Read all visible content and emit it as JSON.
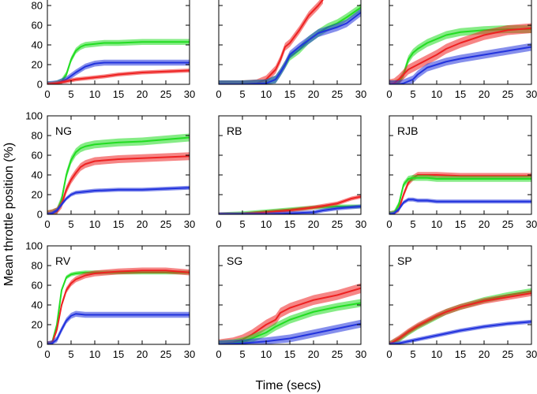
{
  "chart_data": {
    "type": "line",
    "ylabel": "Mean throttle position (%)",
    "xlabel": "Time (secs)",
    "xlim": [
      0,
      30
    ],
    "ylim": [
      0,
      100
    ],
    "xticks": [
      0,
      5,
      10,
      15,
      20,
      25,
      30
    ],
    "yticks": [
      0,
      20,
      40,
      60,
      80,
      100
    ],
    "colors": {
      "green": "#22dd22",
      "red": "#ee2222",
      "blue": "#2233dd"
    },
    "panels": [
      {
        "label": "",
        "series": [
          {
            "color": "green",
            "x": [
              0,
              1,
              2,
              3,
              4,
              5,
              6,
              7,
              8,
              10,
              12,
              15,
              20,
              25,
              30
            ],
            "y": [
              0,
              0,
              1,
              3,
              10,
              25,
              34,
              38,
              40,
              41,
              42,
              42,
              43,
              43,
              43
            ],
            "band": 3
          },
          {
            "color": "blue",
            "x": [
              0,
              2,
              4,
              6,
              8,
              10,
              12,
              15,
              20,
              25,
              30
            ],
            "y": [
              0,
              1,
              5,
              12,
              18,
              21,
              22,
              22,
              22,
              22,
              22
            ],
            "band": 3
          },
          {
            "color": "red",
            "x": [
              0,
              2,
              4,
              6,
              8,
              10,
              12,
              15,
              20,
              25,
              30
            ],
            "y": [
              0,
              1,
              3,
              5,
              6,
              7,
              8,
              10,
              12,
              13,
              14
            ],
            "band": 2
          }
        ]
      },
      {
        "label": "",
        "series": [
          {
            "color": "red",
            "x": [
              0,
              5,
              8,
              10,
              12,
              13,
              14,
              15,
              17,
              19,
              21,
              22
            ],
            "y": [
              0,
              0,
              1,
              5,
              15,
              25,
              38,
              42,
              55,
              70,
              80,
              86
            ],
            "band": 4
          },
          {
            "color": "green",
            "x": [
              0,
              5,
              10,
              12,
              13,
              14,
              15,
              17,
              19,
              21,
              23,
              25,
              27,
              30
            ],
            "y": [
              0,
              0,
              1,
              5,
              12,
              20,
              28,
              35,
              45,
              52,
              58,
              62,
              68,
              78
            ],
            "band": 4
          },
          {
            "color": "blue",
            "x": [
              0,
              5,
              10,
              12,
              13,
              14,
              15,
              17,
              19,
              21,
              23,
              25,
              27,
              30
            ],
            "y": [
              0,
              0,
              1,
              5,
              12,
              20,
              30,
              38,
              45,
              52,
              55,
              58,
              62,
              73
            ],
            "band": 4
          }
        ]
      },
      {
        "label": "",
        "series": [
          {
            "color": "green",
            "x": [
              0,
              1,
              2,
              3,
              4,
              5,
              6,
              8,
              10,
              12,
              15,
              20,
              25,
              30
            ],
            "y": [
              0,
              0,
              2,
              10,
              25,
              32,
              36,
              42,
              46,
              50,
              53,
              55,
              56,
              56
            ],
            "band": 4
          },
          {
            "color": "red",
            "x": [
              0,
              1,
              2,
              3,
              4,
              6,
              8,
              10,
              12,
              15,
              20,
              25,
              30
            ],
            "y": [
              0,
              1,
              5,
              10,
              15,
              20,
              25,
              30,
              36,
              42,
              50,
              55,
              57
            ],
            "band": 5
          },
          {
            "color": "blue",
            "x": [
              0,
              2,
              3,
              4,
              5,
              6,
              8,
              10,
              12,
              15,
              20,
              25,
              30
            ],
            "y": [
              0,
              0,
              1,
              3,
              5,
              10,
              17,
              20,
              23,
              26,
              30,
              34,
              38
            ],
            "band": 4
          }
        ]
      },
      {
        "label": "NG",
        "series": [
          {
            "color": "green",
            "x": [
              0,
              1,
              2,
              3,
              4,
              5,
              6,
              7,
              8,
              10,
              15,
              20,
              25,
              30
            ],
            "y": [
              0,
              1,
              3,
              15,
              40,
              55,
              63,
              67,
              69,
              71,
              73,
              74,
              76,
              78
            ],
            "band": 4
          },
          {
            "color": "red",
            "x": [
              0,
              1,
              2,
              3,
              4,
              5,
              6,
              7,
              8,
              10,
              15,
              20,
              25,
              30
            ],
            "y": [
              0,
              1,
              3,
              10,
              25,
              35,
              42,
              48,
              51,
              54,
              56,
              57,
              58,
              59
            ],
            "band": 4
          },
          {
            "color": "blue",
            "x": [
              0,
              1,
              2,
              3,
              4,
              5,
              6,
              8,
              10,
              15,
              20,
              25,
              30
            ],
            "y": [
              0,
              1,
              4,
              10,
              16,
              20,
              22,
              23,
              24,
              25,
              25,
              26,
              27
            ],
            "band": 2
          }
        ]
      },
      {
        "label": "RB",
        "series": [
          {
            "color": "green",
            "x": [
              0,
              5,
              10,
              15,
              20,
              25,
              30
            ],
            "y": [
              0,
              1,
              3,
              5,
              7,
              8,
              8
            ],
            "band": 2
          },
          {
            "color": "red",
            "x": [
              0,
              5,
              10,
              15,
              20,
              25,
              28,
              30
            ],
            "y": [
              0,
              0,
              2,
              4,
              7,
              11,
              16,
              18
            ],
            "band": 2
          },
          {
            "color": "blue",
            "x": [
              0,
              10,
              15,
              20,
              22,
              25,
              30
            ],
            "y": [
              0,
              0,
              1,
              2,
              4,
              6,
              8
            ],
            "band": 2
          }
        ]
      },
      {
        "label": "RJB",
        "series": [
          {
            "color": "red",
            "x": [
              0,
              1,
              2,
              3,
              4,
              5,
              6,
              8,
              10,
              15,
              20,
              25,
              30
            ],
            "y": [
              0,
              1,
              5,
              20,
              32,
              37,
              40,
              40,
              40,
              39,
              39,
              39,
              39
            ],
            "band": 3
          },
          {
            "color": "green",
            "x": [
              0,
              1,
              2,
              3,
              4,
              5,
              6,
              8,
              10,
              15,
              20,
              25,
              30
            ],
            "y": [
              0,
              1,
              10,
              30,
              36,
              37,
              37,
              37,
              36,
              36,
              36,
              36,
              36
            ],
            "band": 3
          },
          {
            "color": "blue",
            "x": [
              0,
              1,
              2,
              3,
              4,
              5,
              6,
              8,
              10,
              15,
              20,
              25,
              30
            ],
            "y": [
              0,
              1,
              5,
              12,
              15,
              15,
              14,
              14,
              13,
              13,
              13,
              13,
              13
            ],
            "band": 2
          }
        ]
      },
      {
        "label": "RV",
        "series": [
          {
            "color": "green",
            "x": [
              0,
              1,
              2,
              3,
              4,
              5,
              6,
              8,
              10,
              15,
              20,
              25,
              30
            ],
            "y": [
              0,
              2,
              20,
              55,
              68,
              71,
              72,
              73,
              73,
              73,
              73,
              73,
              73
            ],
            "band": 2
          },
          {
            "color": "red",
            "x": [
              0,
              1,
              2,
              3,
              4,
              5,
              6,
              8,
              10,
              15,
              20,
              25,
              30
            ],
            "y": [
              0,
              1,
              15,
              40,
              55,
              62,
              66,
              70,
              72,
              74,
              75,
              75,
              73
            ],
            "band": 3
          },
          {
            "color": "blue",
            "x": [
              0,
              1,
              2,
              3,
              4,
              5,
              6,
              8,
              10,
              15,
              20,
              25,
              30
            ],
            "y": [
              0,
              1,
              5,
              15,
              24,
              29,
              31,
              30,
              30,
              30,
              30,
              30,
              30
            ],
            "band": 3
          }
        ]
      },
      {
        "label": "SG",
        "series": [
          {
            "color": "red",
            "x": [
              0,
              3,
              5,
              7,
              10,
              12,
              13,
              15,
              20,
              25,
              30
            ],
            "y": [
              0,
              2,
              5,
              10,
              20,
              25,
              32,
              37,
              45,
              50,
              57
            ],
            "band": 5
          },
          {
            "color": "green",
            "x": [
              0,
              3,
              5,
              7,
              10,
              12,
              15,
              20,
              25,
              30
            ],
            "y": [
              0,
              1,
              3,
              6,
              12,
              18,
              25,
              33,
              38,
              42
            ],
            "band": 4
          },
          {
            "color": "blue",
            "x": [
              0,
              5,
              10,
              15,
              20,
              25,
              30
            ],
            "y": [
              0,
              1,
              3,
              6,
              11,
              16,
              21
            ],
            "band": 4
          }
        ]
      },
      {
        "label": "SP",
        "series": [
          {
            "color": "green",
            "x": [
              0,
              2,
              4,
              6,
              8,
              10,
              12,
              15,
              20,
              25,
              30
            ],
            "y": [
              0,
              5,
              12,
              18,
              23,
              28,
              33,
              38,
              45,
              50,
              54
            ],
            "band": 3
          },
          {
            "color": "red",
            "x": [
              0,
              2,
              4,
              6,
              8,
              10,
              12,
              15,
              20,
              25,
              30
            ],
            "y": [
              0,
              6,
              13,
              19,
              24,
              29,
              33,
              38,
              44,
              48,
              52
            ],
            "band": 3
          },
          {
            "color": "blue",
            "x": [
              0,
              2,
              4,
              6,
              8,
              10,
              12,
              15,
              20,
              25,
              30
            ],
            "y": [
              0,
              1,
              3,
              5,
              7,
              9,
              11,
              14,
              18,
              21,
              23
            ],
            "band": 2
          }
        ]
      }
    ]
  }
}
